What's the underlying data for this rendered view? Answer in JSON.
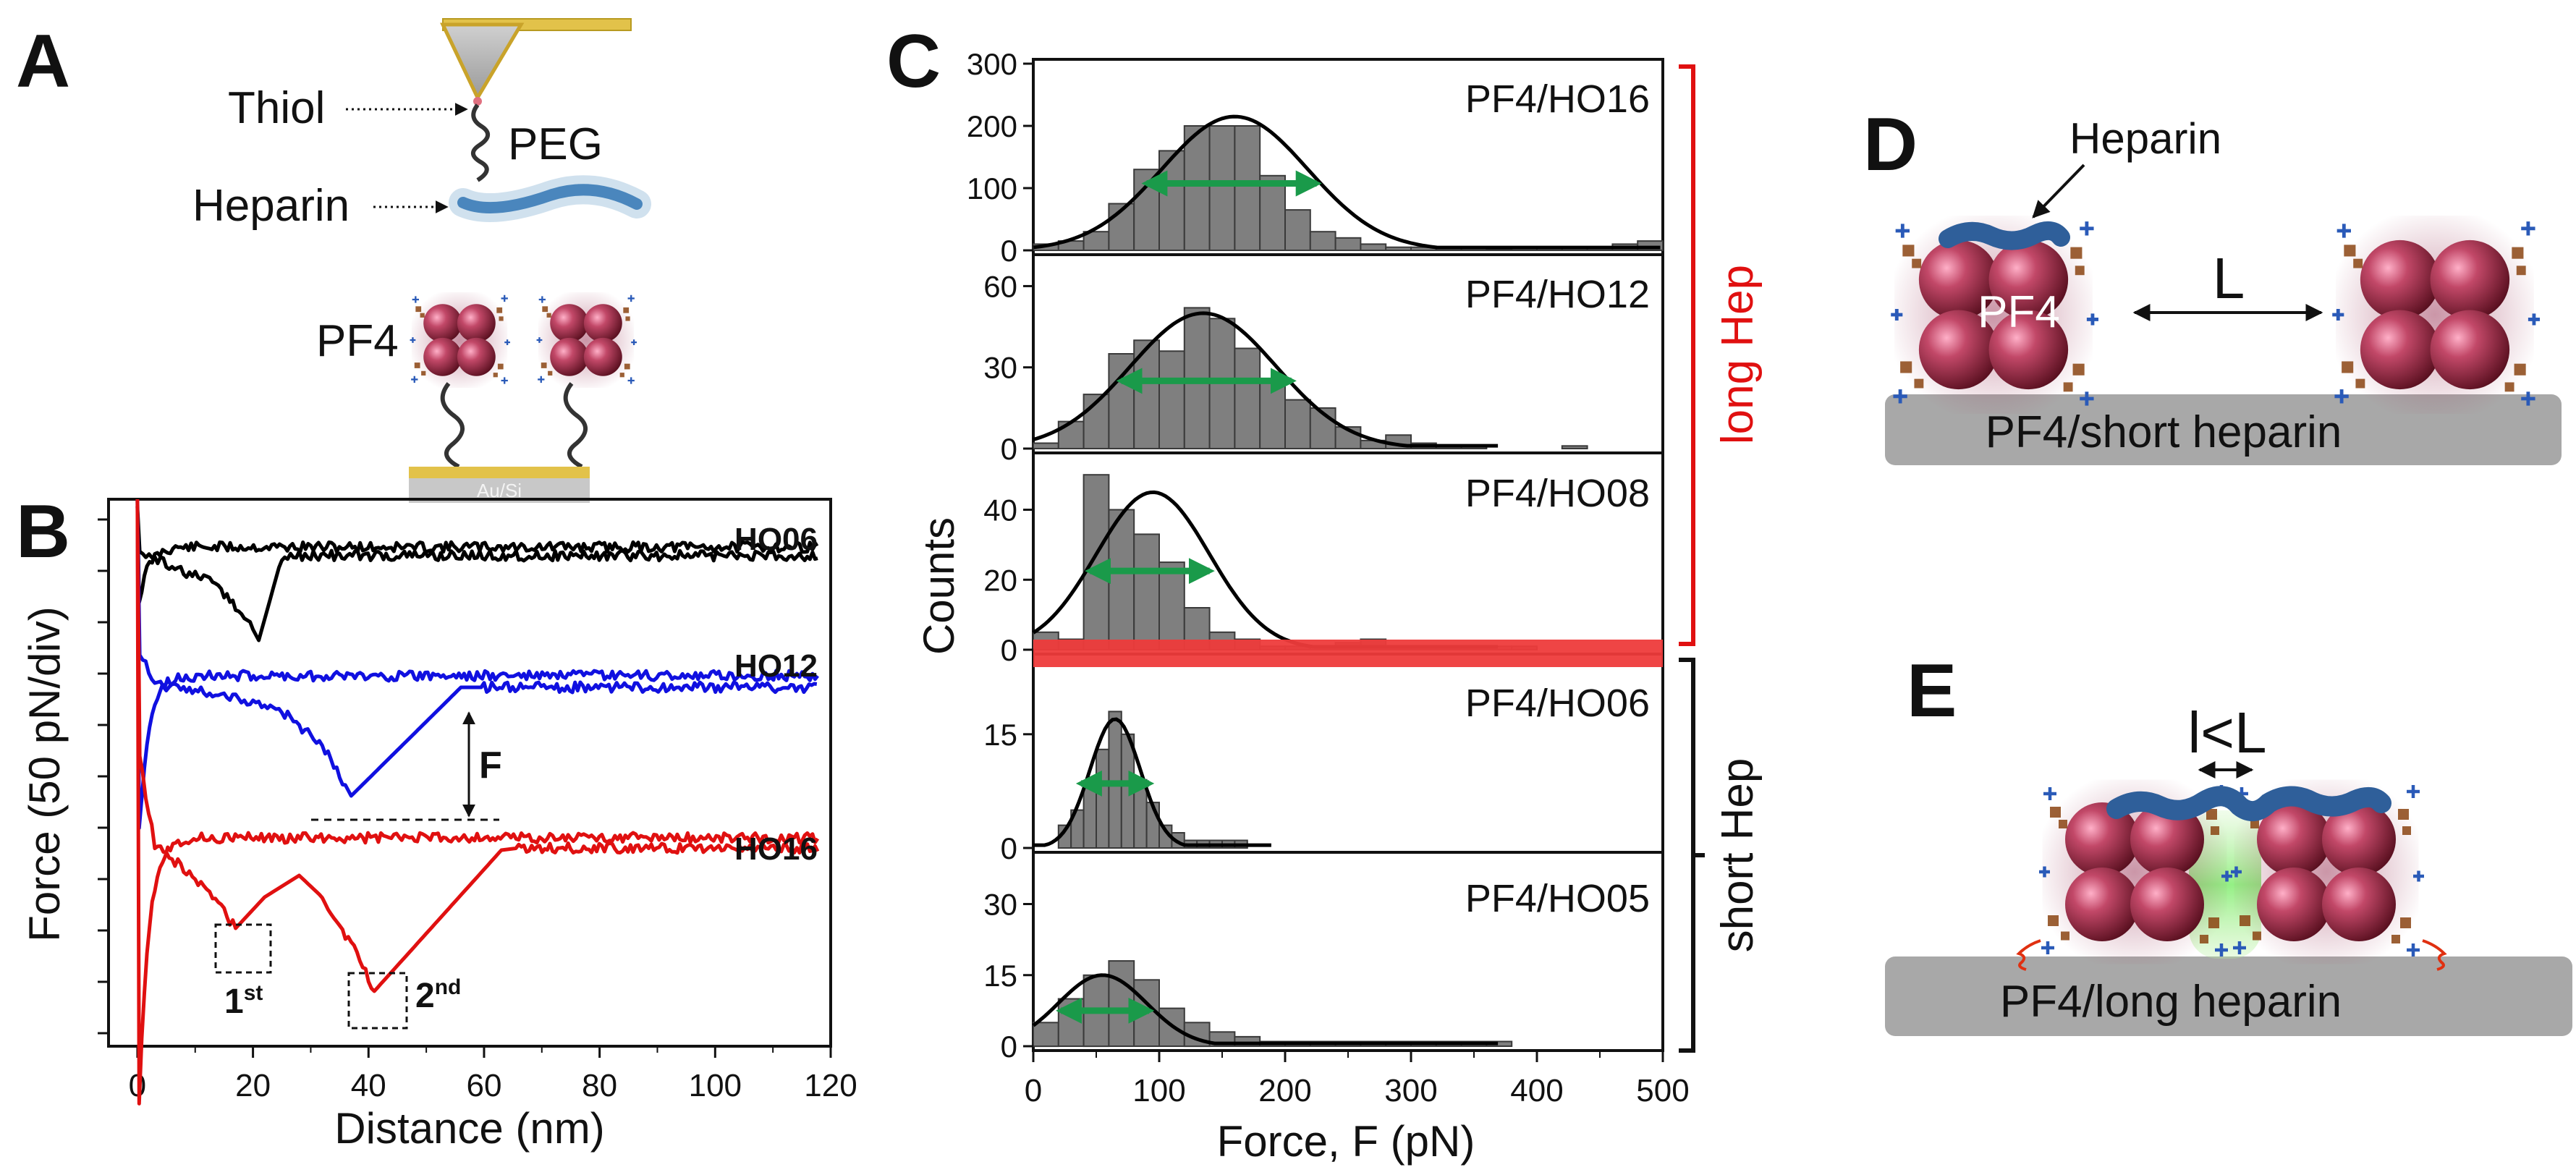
{
  "panels": {
    "A": {
      "letter": "A",
      "labels": {
        "thiol": "Thiol",
        "peg": "PEG",
        "heparin": "Heparin",
        "pf4": "PF4",
        "substrate": "Au/Si"
      }
    },
    "B": {
      "letter": "B",
      "ylabel": "Force (50 pN/div)",
      "xlabel": "Distance (nm)",
      "xticks": [
        "0",
        "20",
        "40",
        "60",
        "80",
        "100",
        "120"
      ],
      "trace_labels": {
        "ho06": "HO06",
        "ho12": "HO12",
        "ho16": "HO16"
      },
      "force_marker": "F",
      "rupture_1": {
        "num": "1",
        "sup": "st"
      },
      "rupture_2": {
        "num": "2",
        "sup": "nd"
      },
      "colors": {
        "ho06": "#000000",
        "ho12": "#1010e0",
        "ho16": "#e01010"
      }
    },
    "C": {
      "letter": "C",
      "ylabel": "Counts",
      "xlabel": "Force, F (pN)",
      "xticks": [
        "0",
        "100",
        "200",
        "300",
        "400",
        "500"
      ],
      "long_label": "long Hep",
      "short_label": "short Hep",
      "colors": {
        "bar": "#7f7f7f",
        "fit": "#000000",
        "fwhm": "#1a9a4a",
        "long": "#e01010",
        "short": "#000000",
        "band": "#ee3b3b"
      }
    },
    "D": {
      "letter": "D",
      "labels": {
        "heparin": "Heparin",
        "pf4": "PF4",
        "distance": "L",
        "surface": "PF4/short heparin"
      }
    },
    "E": {
      "letter": "E",
      "labels": {
        "distance": "l<L",
        "surface": "PF4/long heparin"
      }
    }
  },
  "chart_data": [
    {
      "type": "line",
      "title": "B",
      "xlabel": "Distance (nm)",
      "ylabel": "Force (50 pN/div)",
      "xlim": [
        -5,
        120
      ],
      "series": [
        {
          "name": "HO06",
          "rupture_distance_nm": 21
        },
        {
          "name": "HO12",
          "rupture_distance_nm": 37
        },
        {
          "name": "HO16",
          "rupture_distance_nm": [
            17,
            41
          ]
        }
      ]
    },
    {
      "type": "bar",
      "name": "PF4/HO16",
      "bin_width": 20,
      "bin_starts": [
        0,
        20,
        40,
        60,
        80,
        100,
        120,
        140,
        160,
        180,
        200,
        220,
        240,
        260,
        280,
        300,
        320,
        340,
        360,
        380,
        400,
        420,
        440,
        460,
        480
      ],
      "values": [
        10,
        15,
        30,
        75,
        130,
        160,
        200,
        200,
        200,
        120,
        65,
        30,
        20,
        10,
        5,
        5,
        5,
        3,
        2,
        3,
        5,
        5,
        5,
        10,
        15
      ],
      "fit": {
        "center": 160,
        "sigma": 58,
        "amp": 215
      },
      "fwhm_range": [
        90,
        225
      ],
      "ylim": [
        0,
        300
      ],
      "yticks": [
        0,
        100,
        200,
        300
      ],
      "xlim": [
        0,
        500
      ]
    },
    {
      "type": "bar",
      "name": "PF4/HO12",
      "bin_width": 20,
      "bin_starts": [
        0,
        20,
        40,
        60,
        80,
        100,
        120,
        140,
        160,
        180,
        200,
        220,
        240,
        260,
        280,
        300,
        320,
        340,
        360,
        380,
        400,
        420,
        440,
        460
      ],
      "values": [
        2,
        10,
        20,
        35,
        40,
        36,
        52,
        48,
        37,
        25,
        18,
        15,
        8,
        3,
        5,
        2,
        1,
        1,
        0,
        0,
        0,
        1,
        0,
        0
      ],
      "fit": {
        "center": 135,
        "sigma": 58,
        "amp": 50
      },
      "fwhm_range": [
        70,
        205
      ],
      "ylim": [
        0,
        70
      ],
      "yticks": [
        0,
        30,
        60
      ],
      "xlim": [
        0,
        500
      ]
    },
    {
      "type": "bar",
      "name": "PF4/HO08",
      "bin_width": 20,
      "bin_starts": [
        0,
        20,
        40,
        60,
        80,
        100,
        120,
        140,
        160,
        180,
        200,
        220,
        240,
        260,
        280,
        300,
        320,
        340,
        360,
        380
      ],
      "values": [
        5,
        3,
        50,
        40,
        33,
        25,
        12,
        5,
        3,
        1,
        1,
        1,
        2,
        3,
        1,
        1,
        1,
        1,
        1,
        1
      ],
      "fit": {
        "center": 95,
        "sigma": 45,
        "amp": 45
      },
      "fwhm_range": [
        45,
        140
      ],
      "ylim": [
        0,
        55
      ],
      "yticks": [
        0,
        20,
        40
      ],
      "xlim": [
        0,
        500
      ]
    },
    {
      "type": "bar",
      "name": "PF4/HO06",
      "bin_width": 10,
      "bin_starts": [
        0,
        10,
        20,
        30,
        40,
        50,
        60,
        70,
        80,
        90,
        100,
        110,
        120,
        130,
        140,
        150,
        160,
        170,
        180,
        190
      ],
      "values": [
        0,
        0,
        3,
        5,
        8,
        13,
        18,
        15,
        9,
        6,
        3,
        2,
        1,
        1,
        1,
        1,
        1,
        0,
        0,
        0
      ],
      "fit": {
        "center": 65,
        "sigma": 20,
        "amp": 17
      },
      "fwhm_range": [
        38,
        92
      ],
      "ylim": [
        0,
        25
      ],
      "yticks": [
        0,
        15
      ],
      "xlim": [
        0,
        500
      ]
    },
    {
      "type": "bar",
      "name": "PF4/HO05",
      "bin_width": 20,
      "bin_starts": [
        0,
        20,
        40,
        60,
        80,
        100,
        120,
        140,
        160,
        180,
        200,
        220,
        240,
        260,
        280,
        300,
        320,
        340,
        360
      ],
      "values": [
        5,
        10,
        15,
        18,
        14,
        8,
        5,
        3,
        2,
        1,
        1,
        1,
        1,
        1,
        1,
        1,
        1,
        1,
        1
      ],
      "fit": {
        "center": 55,
        "sigma": 35,
        "amp": 15
      },
      "fwhm_range": [
        22,
        92
      ],
      "ylim": [
        0,
        40
      ],
      "yticks": [
        0,
        15,
        30
      ],
      "xlim": [
        0,
        500
      ]
    }
  ]
}
